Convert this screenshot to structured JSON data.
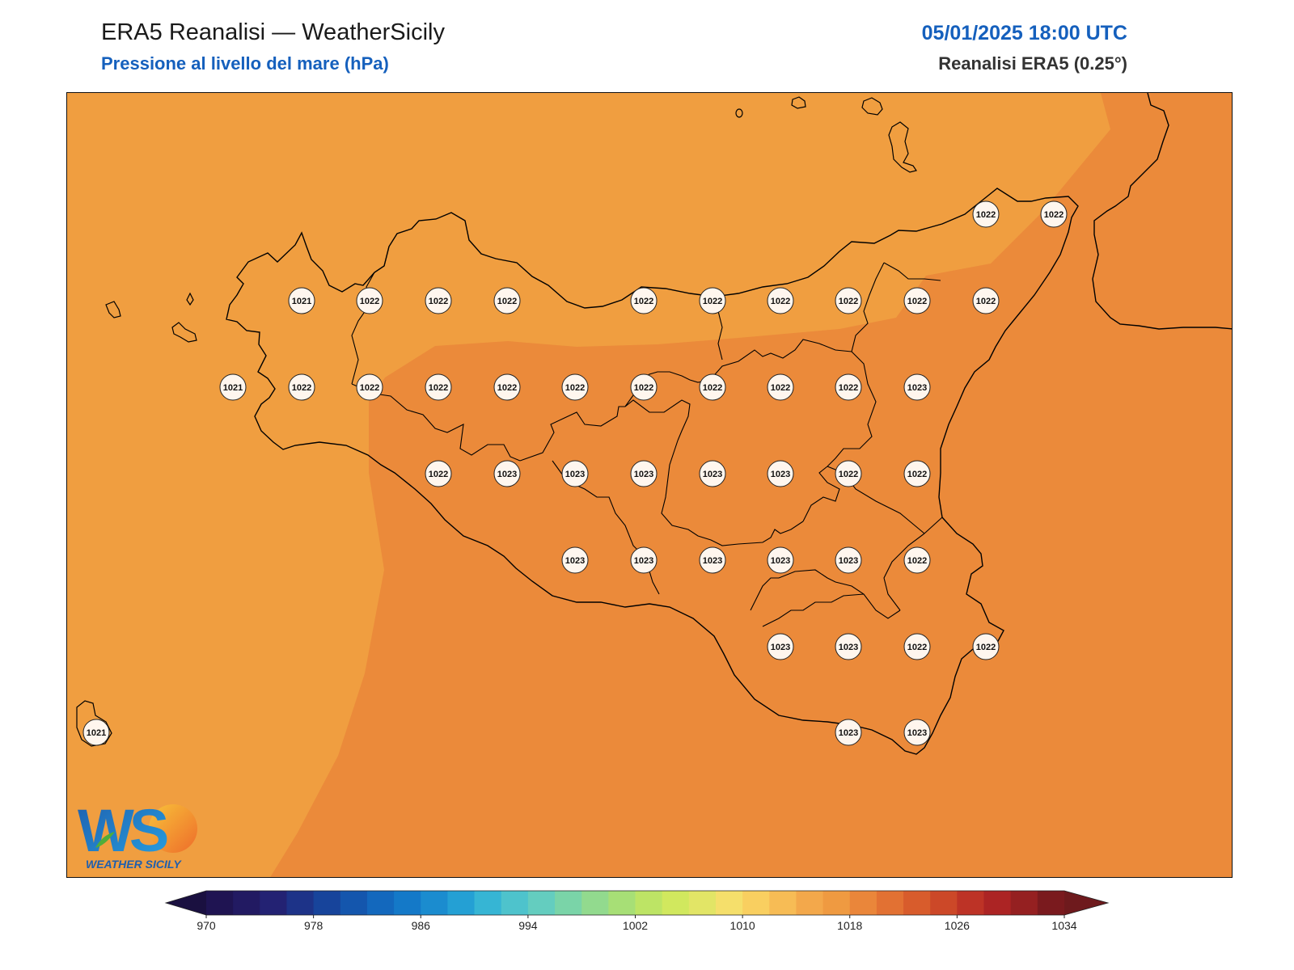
{
  "header": {
    "title": "ERA5 Reanalisi — WeatherSicily",
    "subtitle": "Pressione al livello del mare (hPa)",
    "datetime": "05/01/2025 18:00 UTC",
    "source": "Reanalisi ERA5 (0.25°)"
  },
  "colors": {
    "field_1021": "#f09e40",
    "field_1022": "#eb8a3a",
    "coast": "#000000",
    "label_bg": "#fff6ee",
    "title_blue": "#1560bd"
  },
  "map": {
    "region": "Sicily",
    "variable": "mean sea level pressure",
    "units": "hPa",
    "station_labels": [
      {
        "v": "1022"
      },
      {
        "v": "1022"
      },
      {
        "v": "1021"
      },
      {
        "v": "1022"
      },
      {
        "v": "1022"
      },
      {
        "v": "1022"
      },
      {
        "v": "1022"
      },
      {
        "v": "1022"
      },
      {
        "v": "1022"
      },
      {
        "v": "1022"
      },
      {
        "v": "1022"
      },
      {
        "v": "1022"
      },
      {
        "v": "1021"
      },
      {
        "v": "1022"
      },
      {
        "v": "1022"
      },
      {
        "v": "1022"
      },
      {
        "v": "1022"
      },
      {
        "v": "1022"
      },
      {
        "v": "1022"
      },
      {
        "v": "1022"
      },
      {
        "v": "1022"
      },
      {
        "v": "1022"
      },
      {
        "v": "1023"
      },
      {
        "v": "1022"
      },
      {
        "v": "1023"
      },
      {
        "v": "1023"
      },
      {
        "v": "1023"
      },
      {
        "v": "1023"
      },
      {
        "v": "1023"
      },
      {
        "v": "1022"
      },
      {
        "v": "1022"
      },
      {
        "v": "1023"
      },
      {
        "v": "1023"
      },
      {
        "v": "1023"
      },
      {
        "v": "1023"
      },
      {
        "v": "1023"
      },
      {
        "v": "1022"
      },
      {
        "v": "1023"
      },
      {
        "v": "1023"
      },
      {
        "v": "1022"
      },
      {
        "v": "1022"
      },
      {
        "v": "1021"
      },
      {
        "v": "1023"
      },
      {
        "v": "1023"
      }
    ]
  },
  "colorbar": {
    "min": 970,
    "max": 1034,
    "step": 2,
    "ticks": [
      "970",
      "978",
      "986",
      "994",
      "1002",
      "1010",
      "1018",
      "1026",
      "1034"
    ],
    "colors": [
      "#1f1452",
      "#221a62",
      "#232273",
      "#1d3388",
      "#17449b",
      "#1456ad",
      "#1368bd",
      "#1479c8",
      "#1b8ccf",
      "#24a0d4",
      "#36b5d4",
      "#4ec3cc",
      "#64cdbf",
      "#7ad4a8",
      "#92da8e",
      "#a7df76",
      "#bde465",
      "#d1e85e",
      "#e2e566",
      "#f5df6b",
      "#f9cf60",
      "#f7bc55",
      "#f3a84b",
      "#ef9a41",
      "#ea863a",
      "#e27133",
      "#d85c2c",
      "#cc4828",
      "#bd3326",
      "#ac2424",
      "#952021",
      "#7a1a1e"
    ]
  },
  "logo": {
    "initials": "WS",
    "text": "WEATHER SICILY"
  }
}
